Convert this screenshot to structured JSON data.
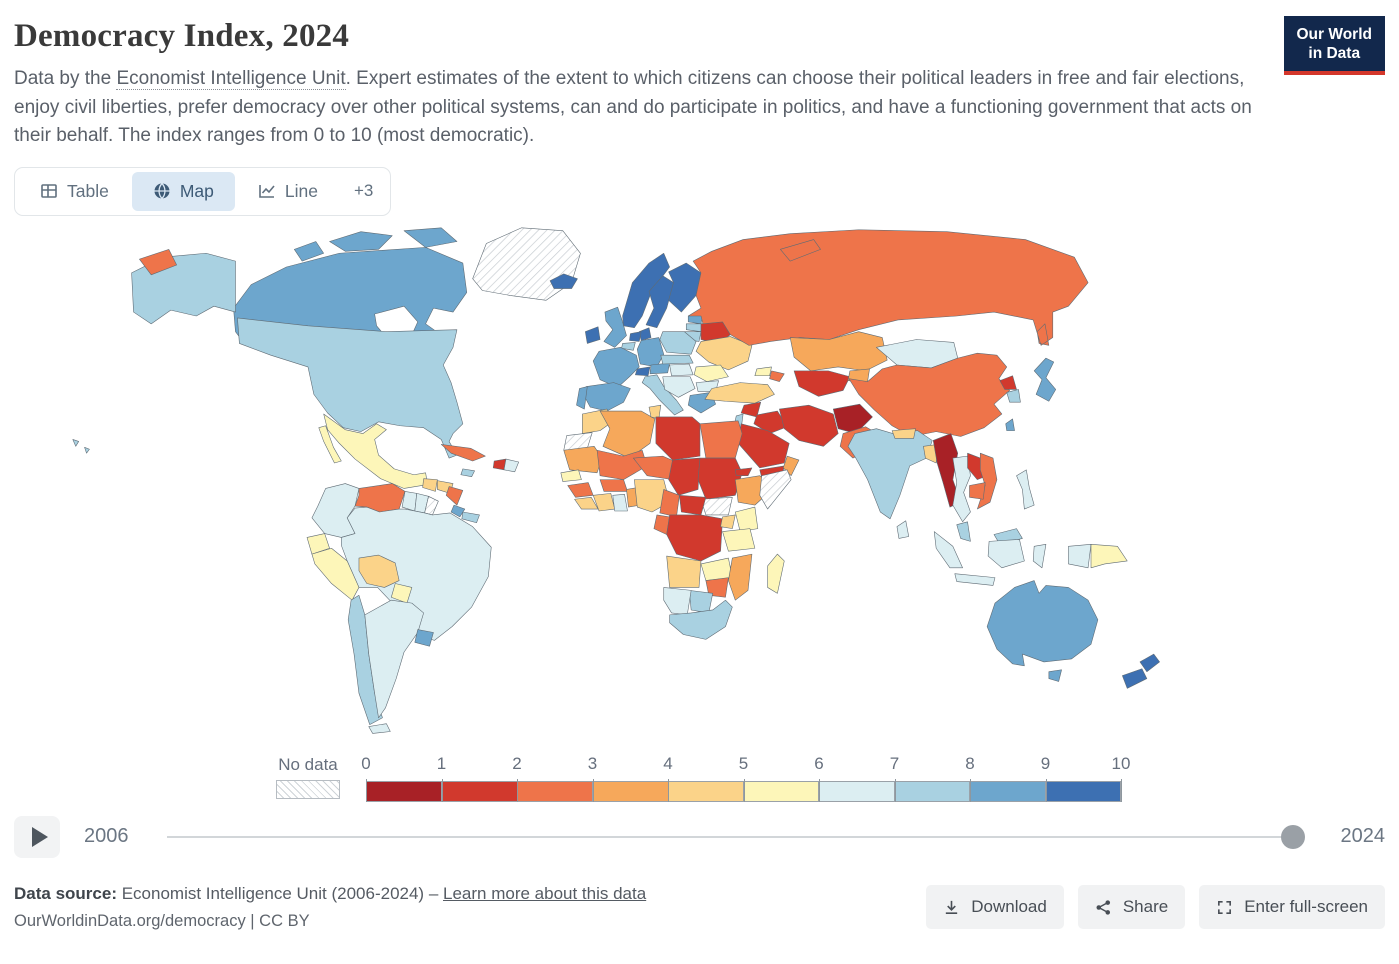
{
  "header": {
    "title": "Democracy Index, 2024",
    "subtitle_prefix": "Data by the ",
    "subtitle_link": "Economist Intelligence Unit",
    "subtitle_suffix": ". Expert estimates of the extent to which citizens can choose their political leaders in free and fair elections, enjoy civil liberties, prefer democracy over other political systems, can and do participate in politics, and have a functioning government that acts on their behalf. The index ranges from 0 to 10 (most democratic).",
    "logo": {
      "line1": "Our World",
      "line2": "in Data",
      "bg": "#12284c",
      "accent": "#d4372b"
    }
  },
  "tabs": [
    {
      "label": "Table"
    },
    {
      "label": "Map"
    },
    {
      "label": "Line"
    },
    {
      "label": "+3"
    }
  ],
  "legend": {
    "no_data_label": "No data",
    "ticks": [
      "0",
      "1",
      "2",
      "3",
      "4",
      "5",
      "6",
      "7",
      "8",
      "9",
      "10"
    ],
    "colors": [
      "#a82126",
      "#d1392d",
      "#ee744a",
      "#f6a85b",
      "#fbd389",
      "#fdf6b9",
      "#dceef2",
      "#a9d1e1",
      "#6da6cd",
      "#3d70b2"
    ]
  },
  "timeline": {
    "start_year": "2006",
    "end_year": "2024"
  },
  "footer": {
    "source_label": "Data source:",
    "source_text": " Economist Intelligence Unit (2006-2024) – ",
    "learn_more": "Learn more about this data",
    "citation": "OurWorldinData.org/democracy | CC BY",
    "buttons": [
      {
        "label": "Download"
      },
      {
        "label": "Share"
      },
      {
        "label": "Enter full-screen"
      }
    ]
  },
  "chart_data": {
    "type": "choropleth-map",
    "title": "Democracy Index, 2024",
    "year": 2024,
    "value_range": [
      0,
      10
    ],
    "legend_position": "bottom",
    "no_data_style": "hatched",
    "countries": {
      "Canada": 8.7,
      "United States": 7.8,
      "Greenland": null,
      "Mexico": 5.3,
      "Guatemala": 4.3,
      "Honduras": 4.5,
      "Nicaragua": 2.1,
      "Costa Rica": 8.3,
      "Panama": 7.1,
      "Cuba": 2.6,
      "Jamaica": 7.1,
      "Haiti": 1.8,
      "Dominican Republic": 6.2,
      "Colombia": 6.5,
      "Venezuela": 2.6,
      "Guyana": 6.2,
      "Suriname": 6.7,
      "French Guiana": null,
      "Ecuador": 5.4,
      "Peru": 5.5,
      "Brazil": 6.8,
      "Bolivia": 4.4,
      "Paraguay": 5.9,
      "Chile": 7.6,
      "Argentina": 6.6,
      "Uruguay": 8.7,
      "Iceland": 9.5,
      "Ireland": 9.2,
      "United Kingdom": 8.3,
      "Norway": 9.8,
      "Sweden": 9.4,
      "Finland": 9.3,
      "Denmark": 9.3,
      "Estonia": 8.1,
      "Latvia": 7.4,
      "Lithuania": 7.6,
      "Belarus": 1.9,
      "Poland": 7.4,
      "Germany": 8.7,
      "Netherlands": 9.0,
      "Belgium": 7.6,
      "France": 8.0,
      "Switzerland": 9.3,
      "Austria": 8.3,
      "Czechia": 7.6,
      "Spain": 8.1,
      "Portugal": 8.0,
      "Italy": 7.6,
      "Hungary": 6.5,
      "Ukraine": 4.9,
      "Romania": 5.9,
      "Serbia": 6.3,
      "Bulgaria": 6.3,
      "Greece": 8.1,
      "Turkey": 4.3,
      "Georgia": 5.2,
      "Azerbaijan": 2.8,
      "Russia": 2.2,
      "Kazakhstan": 3.1,
      "Uzbekistan": 1.9,
      "Kyrgyzstan": 3.0,
      "Mongolia": 6.5,
      "China": 2.1,
      "North Korea": 1.1,
      "South Korea": 7.8,
      "Japan": 8.5,
      "Taiwan": 8.8,
      "India": 7.3,
      "Nepal": 4.6,
      "Bangladesh": 4.3,
      "Sri Lanka": 6.5,
      "Pakistan": 2.8,
      "Afghanistan": 0.3,
      "Iran": 1.9,
      "Iraq": 1.9,
      "Syria": 1.4,
      "Saudi Arabia": 1.9,
      "Yemen": 1.9,
      "Oman": 3.0,
      "Israel": 7.8,
      "Egypt": 2.7,
      "Morocco": 4.9,
      "Western Sahara": null,
      "Algeria": 3.7,
      "Tunisia": 4.6,
      "Libya": 1.8,
      "Mauritania": 3.5,
      "Mali": 2.4,
      "Niger": 2.3,
      "Chad": 1.6,
      "Sudan": 1.5,
      "South Sudan": null,
      "Eritrea": 1.9,
      "Ethiopia": 3.2,
      "Somalia": null,
      "Senegal": 5.6,
      "Guinea": 2.1,
      "Sierra Leone": 4.8,
      "Ivory Coast": 4.2,
      "Ghana": 6.3,
      "Burkina Faso": 2.5,
      "Benin": 3.0,
      "Nigeria": 4.2,
      "Cameroon": 2.6,
      "Central African Republic": 1.2,
      "Democratic Republic of Congo": 1.2,
      "Congo": 2.5,
      "Uganda": 4.8,
      "Kenya": 5.3,
      "Tanzania": 5.2,
      "Angola": 4.4,
      "Zambia": 5.4,
      "Mozambique": 3.5,
      "Zimbabwe": 2.9,
      "Botswana": 7.6,
      "Namibia": 6.5,
      "South Africa": 7.2,
      "Madagascar": 5.4,
      "Myanmar": 0.9,
      "Thailand": 6.3,
      "Laos": 1.8,
      "Vietnam": 2.6,
      "Cambodia": 2.9,
      "Malaysia": 7.3,
      "Indonesia": 6.4,
      "Philippines": 6.6,
      "Papua New Guinea": 5.9,
      "Australia": 8.9,
      "New Zealand": 9.6
    }
  }
}
